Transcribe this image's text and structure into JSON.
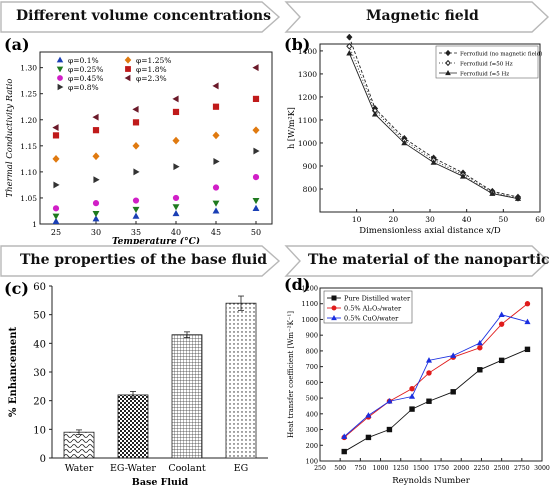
{
  "banners": {
    "a": "Different volume concentrations",
    "b": "Magnetic field",
    "c": "The properties of the base fluid",
    "d": "The material of the nanoparticles"
  },
  "chart_data": [
    {
      "panel": "(a)",
      "type": "scatter",
      "xlabel": "Temperature (°C)",
      "ylabel": "Thermal Conductivity Ratio",
      "xlim": [
        23,
        52
      ],
      "ylim": [
        1.0,
        1.33
      ],
      "xticks": [
        25,
        30,
        35,
        40,
        45,
        50
      ],
      "yticks": [
        1.0,
        1.05,
        1.1,
        1.15,
        1.2,
        1.25,
        1.3
      ],
      "x": [
        25,
        30,
        35,
        40,
        45,
        50
      ],
      "series": [
        {
          "name": "φ=0.1%",
          "color": "#1a3fb5",
          "marker": "triangle-up",
          "values": [
            1.005,
            1.01,
            1.015,
            1.02,
            1.025,
            1.03
          ]
        },
        {
          "name": "φ=0.25%",
          "color": "#1f7a1f",
          "marker": "triangle-down",
          "values": [
            1.015,
            1.02,
            1.028,
            1.033,
            1.04,
            1.045
          ]
        },
        {
          "name": "φ=0.45%",
          "color": "#d11fc7",
          "marker": "circle",
          "values": [
            1.03,
            1.04,
            1.045,
            1.05,
            1.07,
            1.09
          ]
        },
        {
          "name": "φ=0.8%",
          "color": "#333333",
          "marker": "triangle-right",
          "values": [
            1.075,
            1.085,
            1.1,
            1.11,
            1.12,
            1.14
          ]
        },
        {
          "name": "φ=1.25%",
          "color": "#e07a10",
          "marker": "diamond",
          "values": [
            1.125,
            1.13,
            1.15,
            1.16,
            1.17,
            1.18
          ]
        },
        {
          "name": "φ=1.8%",
          "color": "#c01a1a",
          "marker": "square",
          "values": [
            1.17,
            1.18,
            1.195,
            1.215,
            1.225,
            1.24
          ]
        },
        {
          "name": "φ=2.3%",
          "color": "#6b1a2a",
          "marker": "triangle-left",
          "values": [
            1.185,
            1.205,
            1.22,
            1.24,
            1.265,
            1.3
          ]
        }
      ]
    },
    {
      "panel": "(b)",
      "type": "line",
      "xlabel": "Dimensionless axial distance x/D",
      "ylabel": "h [W/m²K]",
      "xlim": [
        0,
        60
      ],
      "ylim": [
        700,
        1430
      ],
      "xticks": [
        10,
        20,
        30,
        40,
        50,
        60
      ],
      "yticks": [
        800,
        900,
        1000,
        1100,
        1200,
        1300,
        1400
      ],
      "x": [
        8,
        15,
        23,
        31,
        39,
        47,
        54
      ],
      "series": [
        {
          "name": "Ferrofluid (no magnetic field)",
          "marker": "diamond-filled",
          "dash": "3,2",
          "values": [
            1460,
            1150,
            1020,
            935,
            870,
            790,
            765
          ]
        },
        {
          "name": "Ferrofluid f=50 Hz",
          "marker": "diamond-open",
          "dash": "1,2",
          "values": [
            1420,
            1140,
            1010,
            925,
            862,
            785,
            760
          ]
        },
        {
          "name": "Ferrofluid f=5 Hz",
          "marker": "triangle-filled",
          "dash": "",
          "values": [
            1390,
            1125,
            1000,
            915,
            855,
            780,
            758
          ]
        }
      ]
    },
    {
      "panel": "(c)",
      "type": "bar",
      "xlabel": "Base Fluid",
      "ylabel": "% Enhancement",
      "ylim": [
        0,
        60
      ],
      "yticks": [
        0,
        10,
        20,
        30,
        40,
        50,
        60
      ],
      "categories": [
        "Water",
        "EG-Water",
        "Coolant",
        "EG"
      ],
      "values": [
        9,
        22,
        43,
        54
      ],
      "errors": [
        0.8,
        1.2,
        1.0,
        2.5
      ],
      "patterns": [
        "wave",
        "checker",
        "grid",
        "dots"
      ]
    },
    {
      "panel": "(d)",
      "type": "line",
      "xlabel": "Reynolds Number",
      "ylabel": "Heat transfer coefficient [Wm⁻²K⁻¹]",
      "xlim": [
        250,
        3000
      ],
      "ylim": [
        100,
        1200
      ],
      "xticks": [
        250,
        500,
        750,
        1000,
        1250,
        1500,
        1750,
        2000,
        2250,
        2500,
        2750,
        3000
      ],
      "yticks": [
        100,
        200,
        300,
        400,
        500,
        600,
        700,
        800,
        900,
        1000,
        1100,
        1200
      ],
      "series": [
        {
          "name": "Pure Distilled water",
          "color": "#111111",
          "marker": "square",
          "x": [
            550,
            850,
            1110,
            1390,
            1600,
            1900,
            2230,
            2500,
            2820
          ],
          "values": [
            160,
            250,
            300,
            430,
            480,
            540,
            680,
            740,
            810
          ]
        },
        {
          "name": "0.5% Al₂O₃/water",
          "color": "#e01b1b",
          "marker": "circle",
          "x": [
            550,
            850,
            1110,
            1390,
            1600,
            1900,
            2230,
            2500,
            2820
          ],
          "values": [
            250,
            380,
            480,
            560,
            660,
            760,
            820,
            970,
            1100
          ]
        },
        {
          "name": "0.5% CuO/water",
          "color": "#1b2fe0",
          "marker": "triangle",
          "x": [
            550,
            850,
            1110,
            1390,
            1600,
            1900,
            2230,
            2500,
            2820
          ],
          "values": [
            255,
            390,
            480,
            510,
            740,
            770,
            850,
            1030,
            985
          ]
        }
      ]
    }
  ]
}
